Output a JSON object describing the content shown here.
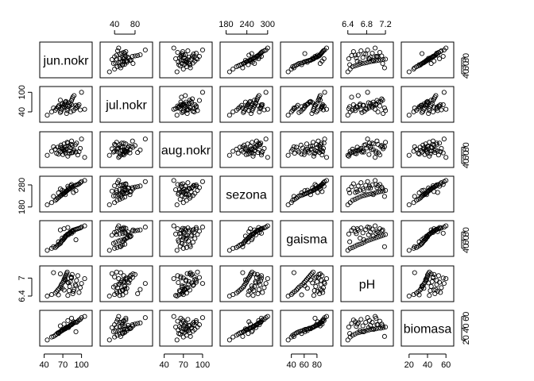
{
  "chart_data": {
    "type": "scatter",
    "title": "",
    "matrix": true,
    "variables": [
      "jun.nokr",
      "jul.nokr",
      "aug.nokr",
      "sezona",
      "gaisma",
      "pH",
      "biomasa"
    ],
    "ranges": [
      [
        38,
        112
      ],
      [
        18,
        108
      ],
      [
        38,
        110
      ],
      [
        172,
        305
      ],
      [
        28,
        100
      ],
      [
        6.32,
        7.3
      ],
      [
        15,
        65
      ]
    ],
    "ticks": [
      [
        40,
        70,
        100
      ],
      [
        40,
        100
      ],
      [
        40,
        60,
        80,
        100
      ],
      [
        180,
        280
      ],
      [
        40,
        60,
        80
      ],
      [
        6.4,
        7.0
      ],
      [
        20,
        40,
        60
      ]
    ],
    "top_axis_ticks": {
      "1": [
        40,
        80
      ],
      "3": [
        180,
        240,
        300
      ],
      "5": [
        6.4,
        6.8,
        7.2
      ]
    },
    "right_axis_ticks": {
      "0": [
        40,
        60,
        80
      ],
      "2": [
        40,
        60,
        80
      ],
      "4": [
        40,
        60,
        80
      ],
      "6": [
        20,
        40,
        60
      ]
    },
    "left_axis_ticks": {
      "1": [
        40,
        100
      ],
      "3": [
        180,
        280
      ],
      "5": [
        6.4,
        7.0
      ]
    },
    "bottom_axis_ticks": {
      "0": [
        40,
        70,
        100
      ],
      "2": [
        40,
        70,
        100
      ],
      "4": [
        40,
        60,
        80
      ],
      "6": [
        20,
        40,
        60
      ]
    },
    "observations": {
      "jun.nokr": [
        45,
        52,
        58,
        60,
        62,
        64,
        66,
        67,
        68,
        70,
        71,
        72,
        73,
        74,
        75,
        76,
        77,
        78,
        80,
        81,
        82,
        84,
        85,
        86,
        88,
        90,
        92,
        94,
        96,
        98,
        100,
        105,
        55,
        63,
        69,
        79,
        83,
        87,
        91,
        74,
        66,
        72,
        78,
        84
      ],
      "jul.nokr": [
        30,
        40,
        45,
        50,
        55,
        60,
        38,
        42,
        48,
        52,
        58,
        62,
        65,
        70,
        72,
        35,
        44,
        50,
        56,
        60,
        66,
        75,
        80,
        85,
        90,
        50,
        54,
        58,
        62,
        46,
        100,
        48,
        52,
        56,
        64,
        68,
        40,
        44,
        60,
        70,
        76,
        55,
        58,
        62
      ],
      "aug.nokr": [
        60,
        70,
        75,
        65,
        80,
        72,
        68,
        85,
        78,
        62,
        74,
        88,
        70,
        66,
        82,
        76,
        92,
        58,
        64,
        71,
        79,
        95,
        84,
        67,
        73,
        86,
        90,
        61,
        69,
        77,
        100,
        55,
        81,
        63,
        75,
        83,
        87,
        70,
        68,
        74,
        80,
        72,
        90,
        66
      ],
      "sezona": [
        190,
        200,
        210,
        215,
        220,
        225,
        230,
        232,
        235,
        238,
        240,
        242,
        245,
        248,
        250,
        252,
        255,
        258,
        260,
        262,
        265,
        268,
        270,
        272,
        275,
        278,
        280,
        282,
        285,
        290,
        295,
        300,
        228,
        244,
        256,
        266,
        276,
        246,
        254,
        236,
        262,
        250,
        274,
        282
      ],
      "gaisma": [
        35,
        40,
        42,
        45,
        48,
        50,
        52,
        55,
        58,
        60,
        62,
        64,
        66,
        68,
        70,
        72,
        74,
        75,
        76,
        78,
        80,
        82,
        83,
        84,
        85,
        86,
        87,
        88,
        89,
        90,
        92,
        95,
        44,
        56,
        65,
        73,
        79,
        81,
        61,
        70,
        85,
        88,
        91,
        77
      ],
      "pH": [
        6.4,
        6.45,
        6.5,
        6.55,
        6.6,
        6.65,
        6.7,
        6.75,
        6.8,
        6.85,
        6.9,
        6.95,
        7.0,
        7.05,
        7.1,
        7.15,
        7.2,
        6.42,
        6.58,
        6.72,
        6.88,
        7.02,
        7.12,
        6.48,
        6.62,
        6.78,
        6.92,
        7.08,
        6.52,
        6.68,
        6.82,
        6.98,
        7.18,
        6.44,
        6.66,
        6.84,
        7.04,
        6.56,
        6.74,
        6.94,
        7.14,
        6.6,
        6.86,
        7.0
      ],
      "biomasa": [
        20,
        25,
        28,
        30,
        32,
        33,
        34,
        35,
        36,
        37,
        38,
        38,
        39,
        40,
        40,
        41,
        42,
        42,
        43,
        44,
        45,
        46,
        47,
        48,
        49,
        50,
        50,
        52,
        54,
        55,
        58,
        60,
        26,
        31,
        36,
        41,
        46,
        51,
        34,
        39,
        44,
        47,
        53,
        57
      ]
    },
    "xlabel": "",
    "ylabel": "",
    "grid": false
  }
}
